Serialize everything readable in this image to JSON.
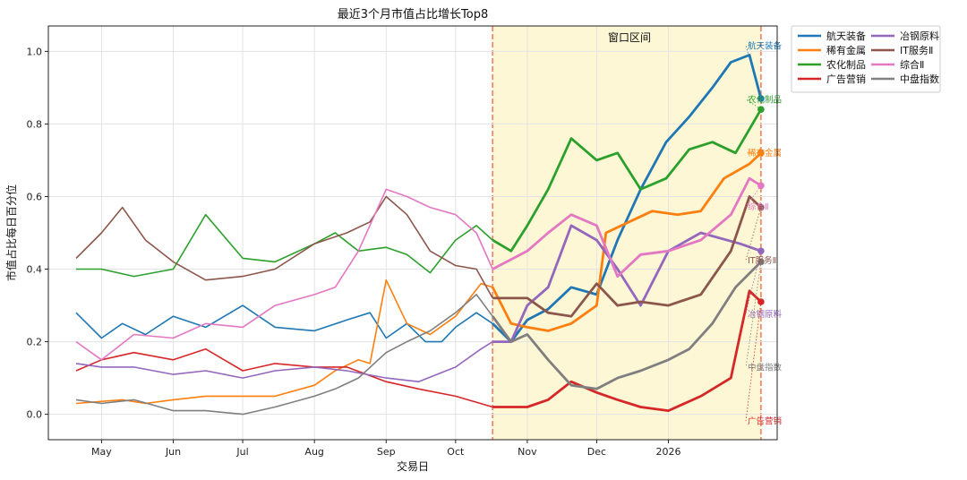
{
  "chart_data": {
    "type": "line",
    "title": "最近3个月市值占比增长Top8",
    "xlabel": "交易日",
    "ylabel": "市值占比每日百分位",
    "ylim": [
      -0.07,
      1.07
    ],
    "yticks": [
      0.0,
      0.2,
      0.4,
      0.6,
      0.8,
      1.0
    ],
    "yticklabels": [
      "0.0",
      "0.2",
      "0.4",
      "0.6",
      "0.8",
      "1.0"
    ],
    "xlim": [
      "2025-04-08",
      "2026-02-17"
    ],
    "xticks": [
      "2025-05-01",
      "2025-06-01",
      "2025-07-01",
      "2025-08-01",
      "2025-09-01",
      "2025-10-01",
      "2025-11-01",
      "2025-12-01",
      "2026-01-01"
    ],
    "xticklabels": [
      "May",
      "Jun",
      "Jul",
      "Aug",
      "Sep",
      "Oct",
      "Nov",
      "Dec",
      "2026"
    ],
    "grid": true,
    "window": {
      "label": "窗口区间",
      "start": "2025-10-17",
      "end": "2026-02-10",
      "fill_color": "#fdf7d6",
      "line_color": "#f08060"
    },
    "legend": {
      "placement": "outside-top-right",
      "columns": 2
    },
    "series": [
      {
        "name": "航天装备",
        "end_label": "航天装备",
        "color": "#1f77b4",
        "points": [
          [
            "2025-04-20",
            0.28
          ],
          [
            "2025-05-01",
            0.21
          ],
          [
            "2025-05-10",
            0.25
          ],
          [
            "2025-05-20",
            0.22
          ],
          [
            "2025-06-01",
            0.27
          ],
          [
            "2025-06-15",
            0.24
          ],
          [
            "2025-07-01",
            0.3
          ],
          [
            "2025-07-15",
            0.24
          ],
          [
            "2025-08-01",
            0.23
          ],
          [
            "2025-08-15",
            0.26
          ],
          [
            "2025-08-25",
            0.28
          ],
          [
            "2025-09-01",
            0.21
          ],
          [
            "2025-09-10",
            0.25
          ],
          [
            "2025-09-18",
            0.2
          ],
          [
            "2025-09-25",
            0.2
          ],
          [
            "2025-10-01",
            0.24
          ],
          [
            "2025-10-10",
            0.28
          ],
          [
            "2025-10-17",
            0.25
          ],
          [
            "2025-10-25",
            0.2
          ],
          [
            "2025-11-01",
            0.26
          ],
          [
            "2025-11-10",
            0.29
          ],
          [
            "2025-11-20",
            0.35
          ],
          [
            "2025-12-01",
            0.33
          ],
          [
            "2025-12-10",
            0.48
          ],
          [
            "2025-12-20",
            0.62
          ],
          [
            "2025-12-31",
            0.75
          ],
          [
            "2026-01-10",
            0.82
          ],
          [
            "2026-01-20",
            0.9
          ],
          [
            "2026-01-28",
            0.97
          ],
          [
            "2026-02-05",
            0.99
          ],
          [
            "2026-02-10",
            0.87
          ]
        ]
      },
      {
        "name": "稀有金属",
        "end_label": "稀有金属",
        "color": "#ff7f0e",
        "points": [
          [
            "2025-04-20",
            0.03
          ],
          [
            "2025-05-10",
            0.04
          ],
          [
            "2025-05-20",
            0.03
          ],
          [
            "2025-06-01",
            0.04
          ],
          [
            "2025-06-15",
            0.05
          ],
          [
            "2025-07-01",
            0.05
          ],
          [
            "2025-07-15",
            0.05
          ],
          [
            "2025-08-01",
            0.08
          ],
          [
            "2025-08-10",
            0.12
          ],
          [
            "2025-08-20",
            0.15
          ],
          [
            "2025-08-25",
            0.14
          ],
          [
            "2025-09-01",
            0.37
          ],
          [
            "2025-09-10",
            0.25
          ],
          [
            "2025-09-20",
            0.22
          ],
          [
            "2025-10-01",
            0.27
          ],
          [
            "2025-10-12",
            0.36
          ],
          [
            "2025-10-17",
            0.35
          ],
          [
            "2025-10-25",
            0.25
          ],
          [
            "2025-11-01",
            0.24
          ],
          [
            "2025-11-10",
            0.23
          ],
          [
            "2025-11-20",
            0.25
          ],
          [
            "2025-12-01",
            0.3
          ],
          [
            "2025-12-05",
            0.5
          ],
          [
            "2025-12-15",
            0.53
          ],
          [
            "2025-12-25",
            0.56
          ],
          [
            "2026-01-05",
            0.55
          ],
          [
            "2026-01-15",
            0.56
          ],
          [
            "2026-01-25",
            0.65
          ],
          [
            "2026-02-05",
            0.69
          ],
          [
            "2026-02-10",
            0.72
          ]
        ]
      },
      {
        "name": "农化制品",
        "end_label": "农化制品",
        "color": "#2ca02c",
        "points": [
          [
            "2025-04-20",
            0.4
          ],
          [
            "2025-05-01",
            0.4
          ],
          [
            "2025-05-15",
            0.38
          ],
          [
            "2025-06-01",
            0.4
          ],
          [
            "2025-06-15",
            0.55
          ],
          [
            "2025-07-01",
            0.43
          ],
          [
            "2025-07-15",
            0.42
          ],
          [
            "2025-08-01",
            0.47
          ],
          [
            "2025-08-10",
            0.5
          ],
          [
            "2025-08-20",
            0.45
          ],
          [
            "2025-09-01",
            0.46
          ],
          [
            "2025-09-10",
            0.44
          ],
          [
            "2025-09-20",
            0.39
          ],
          [
            "2025-10-01",
            0.48
          ],
          [
            "2025-10-10",
            0.52
          ],
          [
            "2025-10-17",
            0.48
          ],
          [
            "2025-10-25",
            0.45
          ],
          [
            "2025-11-01",
            0.52
          ],
          [
            "2025-11-10",
            0.62
          ],
          [
            "2025-11-20",
            0.76
          ],
          [
            "2025-12-01",
            0.7
          ],
          [
            "2025-12-10",
            0.72
          ],
          [
            "2025-12-20",
            0.62
          ],
          [
            "2025-12-31",
            0.65
          ],
          [
            "2026-01-10",
            0.73
          ],
          [
            "2026-01-20",
            0.75
          ],
          [
            "2026-01-30",
            0.72
          ],
          [
            "2026-02-10",
            0.84
          ]
        ]
      },
      {
        "name": "广告营销",
        "end_label": "广告营销",
        "color": "#d62728",
        "points": [
          [
            "2025-04-20",
            0.12
          ],
          [
            "2025-05-01",
            0.15
          ],
          [
            "2025-05-15",
            0.17
          ],
          [
            "2025-06-01",
            0.15
          ],
          [
            "2025-06-15",
            0.18
          ],
          [
            "2025-07-01",
            0.12
          ],
          [
            "2025-07-15",
            0.14
          ],
          [
            "2025-08-01",
            0.13
          ],
          [
            "2025-08-15",
            0.13
          ],
          [
            "2025-09-01",
            0.09
          ],
          [
            "2025-09-15",
            0.07
          ],
          [
            "2025-10-01",
            0.05
          ],
          [
            "2025-10-17",
            0.02
          ],
          [
            "2025-11-01",
            0.02
          ],
          [
            "2025-11-10",
            0.04
          ],
          [
            "2025-11-20",
            0.09
          ],
          [
            "2025-12-01",
            0.06
          ],
          [
            "2025-12-10",
            0.04
          ],
          [
            "2025-12-20",
            0.02
          ],
          [
            "2026-01-01",
            0.01
          ],
          [
            "2026-01-15",
            0.05
          ],
          [
            "2026-01-28",
            0.1
          ],
          [
            "2026-02-05",
            0.34
          ],
          [
            "2026-02-10",
            0.31
          ]
        ]
      },
      {
        "name": "冶钢原料",
        "end_label": "冶钢原料",
        "color": "#9467bd",
        "points": [
          [
            "2025-04-20",
            0.14
          ],
          [
            "2025-05-01",
            0.13
          ],
          [
            "2025-05-15",
            0.13
          ],
          [
            "2025-06-01",
            0.11
          ],
          [
            "2025-06-15",
            0.12
          ],
          [
            "2025-07-01",
            0.1
          ],
          [
            "2025-07-15",
            0.12
          ],
          [
            "2025-08-01",
            0.13
          ],
          [
            "2025-08-15",
            0.12
          ],
          [
            "2025-09-01",
            0.1
          ],
          [
            "2025-09-15",
            0.09
          ],
          [
            "2025-10-01",
            0.13
          ],
          [
            "2025-10-12",
            0.18
          ],
          [
            "2025-10-17",
            0.2
          ],
          [
            "2025-10-25",
            0.2
          ],
          [
            "2025-11-01",
            0.3
          ],
          [
            "2025-11-10",
            0.35
          ],
          [
            "2025-11-20",
            0.52
          ],
          [
            "2025-12-01",
            0.48
          ],
          [
            "2025-12-10",
            0.4
          ],
          [
            "2025-12-20",
            0.3
          ],
          [
            "2026-01-01",
            0.45
          ],
          [
            "2026-01-15",
            0.5
          ],
          [
            "2026-02-01",
            0.47
          ],
          [
            "2026-02-10",
            0.45
          ]
        ]
      },
      {
        "name": "IT服务Ⅱ",
        "end_label": "IT服务Ⅱ",
        "color": "#8c564b",
        "points": [
          [
            "2025-04-20",
            0.43
          ],
          [
            "2025-05-01",
            0.5
          ],
          [
            "2025-05-10",
            0.57
          ],
          [
            "2025-05-20",
            0.48
          ],
          [
            "2025-06-01",
            0.42
          ],
          [
            "2025-06-15",
            0.37
          ],
          [
            "2025-07-01",
            0.38
          ],
          [
            "2025-07-15",
            0.4
          ],
          [
            "2025-08-01",
            0.47
          ],
          [
            "2025-08-15",
            0.5
          ],
          [
            "2025-08-25",
            0.53
          ],
          [
            "2025-09-01",
            0.6
          ],
          [
            "2025-09-10",
            0.55
          ],
          [
            "2025-09-20",
            0.45
          ],
          [
            "2025-10-01",
            0.41
          ],
          [
            "2025-10-10",
            0.4
          ],
          [
            "2025-10-17",
            0.32
          ],
          [
            "2025-11-01",
            0.32
          ],
          [
            "2025-11-10",
            0.28
          ],
          [
            "2025-11-20",
            0.27
          ],
          [
            "2025-12-01",
            0.36
          ],
          [
            "2025-12-10",
            0.3
          ],
          [
            "2025-12-20",
            0.31
          ],
          [
            "2026-01-01",
            0.3
          ],
          [
            "2026-01-15",
            0.33
          ],
          [
            "2026-01-28",
            0.45
          ],
          [
            "2026-02-05",
            0.6
          ],
          [
            "2026-02-10",
            0.57
          ]
        ]
      },
      {
        "name": "综合Ⅱ",
        "end_label": "综合Ⅱ",
        "color": "#e377c2",
        "points": [
          [
            "2025-04-20",
            0.2
          ],
          [
            "2025-05-01",
            0.15
          ],
          [
            "2025-05-15",
            0.22
          ],
          [
            "2025-06-01",
            0.21
          ],
          [
            "2025-06-15",
            0.25
          ],
          [
            "2025-07-01",
            0.24
          ],
          [
            "2025-07-15",
            0.3
          ],
          [
            "2025-08-01",
            0.33
          ],
          [
            "2025-08-10",
            0.35
          ],
          [
            "2025-08-20",
            0.45
          ],
          [
            "2025-09-01",
            0.62
          ],
          [
            "2025-09-10",
            0.6
          ],
          [
            "2025-09-20",
            0.57
          ],
          [
            "2025-10-01",
            0.55
          ],
          [
            "2025-10-10",
            0.5
          ],
          [
            "2025-10-17",
            0.4
          ],
          [
            "2025-11-01",
            0.45
          ],
          [
            "2025-11-10",
            0.5
          ],
          [
            "2025-11-20",
            0.55
          ],
          [
            "2025-12-01",
            0.52
          ],
          [
            "2025-12-10",
            0.38
          ],
          [
            "2025-12-20",
            0.44
          ],
          [
            "2026-01-01",
            0.45
          ],
          [
            "2026-01-15",
            0.48
          ],
          [
            "2026-01-28",
            0.55
          ],
          [
            "2026-02-05",
            0.65
          ],
          [
            "2026-02-10",
            0.63
          ]
        ]
      },
      {
        "name": "中盘指数",
        "end_label": "中盘指数",
        "color": "#7f7f7f",
        "points": [
          [
            "2025-04-20",
            0.04
          ],
          [
            "2025-05-01",
            0.03
          ],
          [
            "2025-05-15",
            0.04
          ],
          [
            "2025-06-01",
            0.01
          ],
          [
            "2025-06-15",
            0.01
          ],
          [
            "2025-07-01",
            0.0
          ],
          [
            "2025-07-15",
            0.02
          ],
          [
            "2025-08-01",
            0.05
          ],
          [
            "2025-08-10",
            0.07
          ],
          [
            "2025-08-20",
            0.1
          ],
          [
            "2025-09-01",
            0.17
          ],
          [
            "2025-09-10",
            0.2
          ],
          [
            "2025-09-20",
            0.23
          ],
          [
            "2025-10-01",
            0.28
          ],
          [
            "2025-10-10",
            0.33
          ],
          [
            "2025-10-17",
            0.27
          ],
          [
            "2025-10-25",
            0.2
          ],
          [
            "2025-11-01",
            0.22
          ],
          [
            "2025-11-10",
            0.15
          ],
          [
            "2025-11-20",
            0.08
          ],
          [
            "2025-12-01",
            0.07
          ],
          [
            "2025-12-10",
            0.1
          ],
          [
            "2025-12-20",
            0.12
          ],
          [
            "2026-01-01",
            0.15
          ],
          [
            "2026-01-10",
            0.18
          ],
          [
            "2026-01-20",
            0.25
          ],
          [
            "2026-01-30",
            0.35
          ],
          [
            "2026-02-10",
            0.42
          ]
        ]
      }
    ]
  }
}
